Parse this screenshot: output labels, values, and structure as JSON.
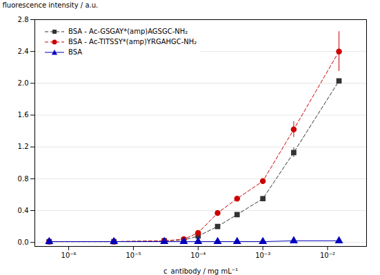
{
  "chart_data": {
    "type": "line",
    "xlabel": "c_antibody / mg mL⁻¹",
    "ylabel": "fluorescence intensity / a.u.",
    "log": "x",
    "grid": true,
    "legend": "upper left",
    "x": [
      5e-07,
      5e-06,
      3e-05,
      6e-05,
      0.0001,
      0.0002,
      0.0004,
      0.001,
      0.003,
      0.015
    ],
    "xlim": [
      3e-07,
      0.04
    ],
    "xticks": [
      {
        "value": 1e-06,
        "label": "10⁻⁶"
      },
      {
        "value": 1e-05,
        "label": "10⁻⁵"
      },
      {
        "value": 0.0001,
        "label": "10⁻⁴"
      },
      {
        "value": 0.001,
        "label": "10⁻³"
      },
      {
        "value": 0.01,
        "label": "10⁻²"
      }
    ],
    "ylim": [
      -0.05,
      2.8
    ],
    "yticks": [
      {
        "value": 0.0,
        "label": "0.0"
      },
      0.4,
      0.8,
      1.2,
      1.6,
      {
        "value": 2.0,
        "label": "2.0"
      },
      2.4,
      2.8
    ],
    "series": [
      {
        "name": "BSA - Ac-GSGAY*(amp)AGSGC-NH₂",
        "color": "#333333",
        "marker": "square",
        "line_style": "dashed",
        "values": [
          0.01,
          0.01,
          0.02,
          0.03,
          0.08,
          0.2,
          0.35,
          0.55,
          1.13,
          2.03
        ],
        "yerr": [
          0.0,
          0.0,
          0.0,
          0.0,
          0.0,
          0.0,
          0.0,
          0.03,
          0.06,
          0.0
        ]
      },
      {
        "name": "BSA - Ac-TITSSY*(amp)YRGAHGC-NH₂",
        "color": "#cc0000",
        "marker": "circle",
        "line_style": "dashed",
        "values": [
          0.01,
          0.01,
          0.02,
          0.04,
          0.12,
          0.37,
          0.55,
          0.77,
          1.42,
          2.4
        ],
        "yerr": [
          0.0,
          0.0,
          0.0,
          0.0,
          0.0,
          0.0,
          0.0,
          0.0,
          0.1,
          0.25
        ]
      },
      {
        "name": "BSA",
        "color": "#0000bb",
        "marker": "triangle",
        "line_style": "solid",
        "values": [
          0.01,
          0.01,
          0.01,
          0.01,
          0.01,
          0.01,
          0.01,
          0.01,
          0.02,
          0.02
        ],
        "yerr": [
          0.0,
          0.0,
          0.0,
          0.0,
          0.0,
          0.0,
          0.0,
          0.0,
          0.0,
          0.0
        ]
      }
    ]
  }
}
